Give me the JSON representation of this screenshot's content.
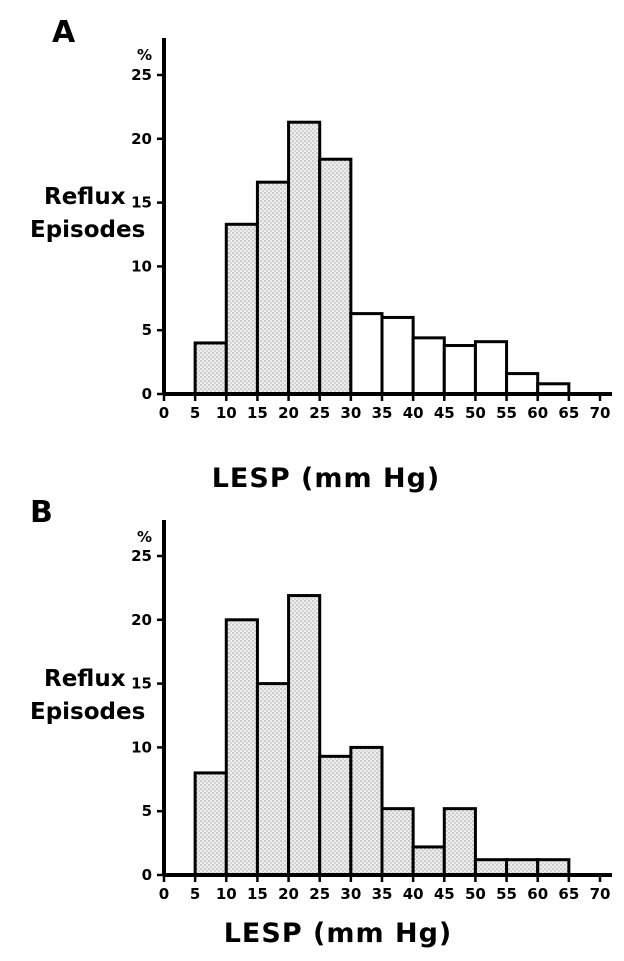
{
  "chart_data": [
    {
      "type": "bar",
      "panel_label": "A",
      "ylabel": "Reflux Episodes",
      "yunit": "%",
      "xlabel": "LESP (mm Hg)",
      "bins": [
        [
          5,
          10
        ],
        [
          10,
          15
        ],
        [
          15,
          20
        ],
        [
          20,
          25
        ],
        [
          25,
          30
        ],
        [
          30,
          35
        ],
        [
          35,
          40
        ],
        [
          40,
          45
        ],
        [
          45,
          50
        ],
        [
          50,
          55
        ],
        [
          55,
          60
        ],
        [
          60,
          65
        ]
      ],
      "values": [
        4,
        13.3,
        16.6,
        21.3,
        18.4,
        6.3,
        6,
        4.4,
        3.8,
        4.1,
        1.6,
        0.8
      ],
      "fill": "partial-shaded",
      "xlim": [
        0,
        70
      ],
      "ylim": [
        0,
        25
      ],
      "xticks": [
        "0",
        "5",
        "10",
        "15",
        "20",
        "25",
        "30",
        "35",
        "40",
        "45",
        "50",
        "55",
        "60",
        "65",
        "70"
      ],
      "yticks": [
        "0",
        "5",
        "10",
        "15",
        "20",
        "25"
      ]
    },
    {
      "type": "bar",
      "panel_label": "B",
      "ylabel": "Reflux Episodes",
      "yunit": "%",
      "xlabel": "LESP (mm Hg)",
      "bins": [
        [
          5,
          10
        ],
        [
          10,
          15
        ],
        [
          15,
          20
        ],
        [
          20,
          25
        ],
        [
          25,
          30
        ],
        [
          30,
          35
        ],
        [
          35,
          40
        ],
        [
          40,
          45
        ],
        [
          45,
          50
        ],
        [
          50,
          55
        ],
        [
          55,
          60
        ],
        [
          60,
          65
        ]
      ],
      "values": [
        8,
        20,
        15,
        21.9,
        9.3,
        10,
        5.2,
        2.2,
        5.2,
        1.2,
        1.2,
        1.2
      ],
      "fill": "shaded",
      "xlim": [
        0,
        70
      ],
      "ylim": [
        0,
        25
      ],
      "xticks": [
        "0",
        "5",
        "10",
        "15",
        "20",
        "25",
        "30",
        "35",
        "40",
        "45",
        "50",
        "55",
        "60",
        "65",
        "70"
      ],
      "yticks": [
        "0",
        "5",
        "10",
        "15",
        "20",
        "25"
      ]
    }
  ]
}
